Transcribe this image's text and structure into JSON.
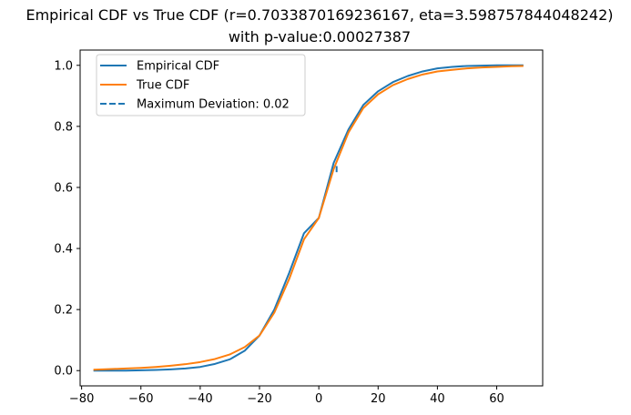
{
  "chart_data": {
    "type": "line",
    "title_line1": "Empirical CDF vs True CDF (r=0.7033870169236167, eta=3.598757844048242)",
    "title_line2": "with p-value:0.00027387",
    "xlabel": "",
    "ylabel": "",
    "xlim": [
      -80.5,
      75.5
    ],
    "ylim": [
      -0.05,
      1.05
    ],
    "x_ticks": [
      -80,
      -60,
      -40,
      -20,
      0,
      20,
      40,
      60
    ],
    "x_tick_labels": [
      "−80",
      "−60",
      "−40",
      "−20",
      "0",
      "20",
      "40",
      "60"
    ],
    "y_ticks": [
      0.0,
      0.2,
      0.4,
      0.6,
      0.8,
      1.0
    ],
    "y_tick_labels": [
      "0.0",
      "0.2",
      "0.4",
      "0.6",
      "0.8",
      "1.0"
    ],
    "grid": false,
    "legend_position": "top-left",
    "series": [
      {
        "name": "Empirical CDF",
        "color": "#1f77b4",
        "style": "solid",
        "x": [
          -76,
          -70,
          -65,
          -60,
          -55,
          -50,
          -45,
          -40,
          -35,
          -30,
          -25,
          -20,
          -15,
          -10,
          -5,
          0,
          5,
          10,
          15,
          20,
          25,
          30,
          35,
          40,
          45,
          50,
          55,
          60,
          65,
          69
        ],
        "y": [
          0.0,
          0.0,
          0.0,
          0.001,
          0.002,
          0.004,
          0.007,
          0.012,
          0.022,
          0.037,
          0.065,
          0.115,
          0.2,
          0.32,
          0.45,
          0.5,
          0.68,
          0.79,
          0.87,
          0.915,
          0.945,
          0.965,
          0.98,
          0.99,
          0.995,
          0.998,
          0.999,
          1.0,
          1.0,
          1.0
        ]
      },
      {
        "name": "True CDF",
        "color": "#ff7f0e",
        "style": "solid",
        "x": [
          -76,
          -70,
          -65,
          -60,
          -55,
          -50,
          -45,
          -40,
          -35,
          -30,
          -25,
          -20,
          -15,
          -10,
          -5,
          0,
          5,
          10,
          15,
          20,
          25,
          30,
          35,
          40,
          45,
          50,
          55,
          60,
          65,
          69
        ],
        "y": [
          0.003,
          0.005,
          0.007,
          0.009,
          0.012,
          0.016,
          0.021,
          0.028,
          0.038,
          0.053,
          0.077,
          0.115,
          0.19,
          0.3,
          0.43,
          0.5,
          0.66,
          0.78,
          0.86,
          0.905,
          0.935,
          0.955,
          0.97,
          0.98,
          0.985,
          0.99,
          0.993,
          0.995,
          0.997,
          0.998
        ]
      },
      {
        "name": "Maximum Deviation: 0.02",
        "color": "#1f77b4",
        "style": "dashed",
        "x": [
          6,
          6
        ],
        "y": [
          0.65,
          0.67
        ]
      }
    ]
  }
}
